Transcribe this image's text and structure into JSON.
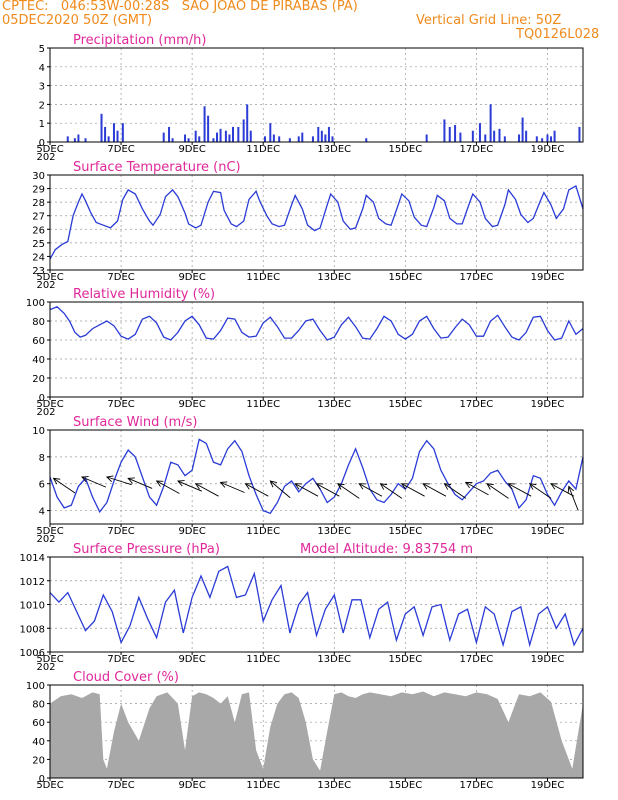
{
  "header": {
    "line1": "CPTEC:   046:53W-00:28S   SAO JOAO DE PIRABAS (PA)",
    "date": "05DEC2020 50Z (GMT)",
    "grid_note": "Vertical Grid Line: 50Z",
    "code": "TQ0126L028"
  },
  "colors": {
    "header": "#f08a1c",
    "title": "#e0289a",
    "line": "#2a3bd6",
    "cloud": "#a8a8a8"
  },
  "chart_data": [
    {
      "type": "bar",
      "title": "Precipitation (mm/h)",
      "ylim": [
        0,
        5
      ],
      "yticks": [
        0,
        1,
        2,
        3,
        4,
        5
      ],
      "x_ticks": [
        "5DEC",
        "7DEC",
        "9DEC",
        "11DEC",
        "13DEC",
        "15DEC",
        "17DEC",
        "19DEC"
      ],
      "x_tick_days": [
        0,
        2,
        4,
        6,
        8,
        10,
        12,
        14
      ],
      "x_range_days": [
        0,
        15
      ],
      "x_sub": "202",
      "bars": [
        [
          0.5,
          0.3
        ],
        [
          0.7,
          0.2
        ],
        [
          0.8,
          0.4
        ],
        [
          1.0,
          0.2
        ],
        [
          1.45,
          1.5
        ],
        [
          1.55,
          0.8
        ],
        [
          1.65,
          0.3
        ],
        [
          1.8,
          1.0
        ],
        [
          1.9,
          0.6
        ],
        [
          2.05,
          1.0
        ],
        [
          3.2,
          0.5
        ],
        [
          3.35,
          0.8
        ],
        [
          3.45,
          0.2
        ],
        [
          3.8,
          0.4
        ],
        [
          3.9,
          0.2
        ],
        [
          4.1,
          0.6
        ],
        [
          4.2,
          0.3
        ],
        [
          4.35,
          1.9
        ],
        [
          4.45,
          1.4
        ],
        [
          4.6,
          0.2
        ],
        [
          4.7,
          0.5
        ],
        [
          4.8,
          0.7
        ],
        [
          4.95,
          0.6
        ],
        [
          5.05,
          0.4
        ],
        [
          5.15,
          0.8
        ],
        [
          5.3,
          0.8
        ],
        [
          5.45,
          1.2
        ],
        [
          5.55,
          2.0
        ],
        [
          5.65,
          0.6
        ],
        [
          6.05,
          0.3
        ],
        [
          6.2,
          1.0
        ],
        [
          6.3,
          0.4
        ],
        [
          6.45,
          0.3
        ],
        [
          6.75,
          0.2
        ],
        [
          7.0,
          0.3
        ],
        [
          7.1,
          0.5
        ],
        [
          7.4,
          0.3
        ],
        [
          7.55,
          0.8
        ],
        [
          7.65,
          0.6
        ],
        [
          7.75,
          0.4
        ],
        [
          7.85,
          0.8
        ],
        [
          7.95,
          0.3
        ],
        [
          8.9,
          0.2
        ],
        [
          10.6,
          0.4
        ],
        [
          11.1,
          1.2
        ],
        [
          11.25,
          0.8
        ],
        [
          11.4,
          0.9
        ],
        [
          11.55,
          0.5
        ],
        [
          11.9,
          0.6
        ],
        [
          12.1,
          1.0
        ],
        [
          12.25,
          0.4
        ],
        [
          12.4,
          2.0
        ],
        [
          12.5,
          0.6
        ],
        [
          12.65,
          0.7
        ],
        [
          12.8,
          0.3
        ],
        [
          13.2,
          0.4
        ],
        [
          13.3,
          1.3
        ],
        [
          13.4,
          0.6
        ],
        [
          13.7,
          0.3
        ],
        [
          13.85,
          0.2
        ],
        [
          14.0,
          0.4
        ],
        [
          14.1,
          0.3
        ],
        [
          14.2,
          0.6
        ],
        [
          14.9,
          0.8
        ]
      ]
    },
    {
      "type": "line",
      "title": "Surface Temperature (nC)",
      "ylim": [
        23,
        30
      ],
      "yticks": [
        23,
        24,
        25,
        26,
        27,
        28,
        29,
        30
      ],
      "x_ticks": [
        "5DEC",
        "7DEC",
        "9DEC",
        "11DEC",
        "13DEC",
        "15DEC",
        "17DEC",
        "19DEC"
      ],
      "x_tick_days": [
        0,
        2,
        4,
        6,
        8,
        10,
        12,
        14
      ],
      "x_range_days": [
        0,
        15
      ],
      "x_sub": "202",
      "x": [
        0,
        0.15,
        0.35,
        0.5,
        0.65,
        0.8,
        0.9,
        1.0,
        1.15,
        1.3,
        1.5,
        1.7,
        1.9,
        2.05,
        2.2,
        2.4,
        2.6,
        2.8,
        2.9,
        3.1,
        3.25,
        3.45,
        3.6,
        3.8,
        3.9,
        4.1,
        4.25,
        4.45,
        4.6,
        4.8,
        4.9,
        5.1,
        5.25,
        5.45,
        5.6,
        5.8,
        5.9,
        6.1,
        6.25,
        6.45,
        6.6,
        6.8,
        6.9,
        7.1,
        7.25,
        7.45,
        7.6,
        7.8,
        7.9,
        8.1,
        8.25,
        8.45,
        8.6,
        8.8,
        8.9,
        9.1,
        9.25,
        9.45,
        9.6,
        9.8,
        9.9,
        10.1,
        10.25,
        10.45,
        10.6,
        10.8,
        10.9,
        11.1,
        11.25,
        11.45,
        11.6,
        11.8,
        11.9,
        12.1,
        12.25,
        12.45,
        12.6,
        12.8,
        12.9,
        13.1,
        13.25,
        13.45,
        13.6,
        13.8,
        13.9,
        14.1,
        14.25,
        14.45,
        14.6,
        14.8,
        15.0
      ],
      "y": [
        23.8,
        24.5,
        24.9,
        25.1,
        27.0,
        28.0,
        28.6,
        28.1,
        27.2,
        26.5,
        26.3,
        26.1,
        26.6,
        28.2,
        28.9,
        28.6,
        27.5,
        26.6,
        26.3,
        27.1,
        28.4,
        28.9,
        28.4,
        27.2,
        26.4,
        26.1,
        26.3,
        28.0,
        28.8,
        28.7,
        27.4,
        26.4,
        26.2,
        26.6,
        28.2,
        28.8,
        28.1,
        27.0,
        26.4,
        26.2,
        26.3,
        27.8,
        28.5,
        27.5,
        26.3,
        25.9,
        26.1,
        27.8,
        28.6,
        28.0,
        26.6,
        26.0,
        26.1,
        27.5,
        28.5,
        28.0,
        26.8,
        26.4,
        26.3,
        27.8,
        28.6,
        28.1,
        26.9,
        26.3,
        26.2,
        27.6,
        28.5,
        28.1,
        26.8,
        26.4,
        26.4,
        27.9,
        28.6,
        28.0,
        26.8,
        26.2,
        26.3,
        27.8,
        28.9,
        28.2,
        27.1,
        26.5,
        26.8,
        28.1,
        28.7,
        27.8,
        26.8,
        27.5,
        28.9,
        29.2,
        27.5
      ]
    },
    {
      "type": "line",
      "title": "Relative Humidity (%)",
      "ylim": [
        0,
        100
      ],
      "yticks": [
        0,
        20,
        40,
        60,
        80,
        100
      ],
      "x_ticks": [
        "5DEC",
        "7DEC",
        "9DEC",
        "11DEC",
        "13DEC",
        "15DEC",
        "17DEC",
        "19DEC"
      ],
      "x_tick_days": [
        0,
        2,
        4,
        6,
        8,
        10,
        12,
        14
      ],
      "x_range_days": [
        0,
        15
      ],
      "x_sub": "202",
      "x": [
        0,
        0.2,
        0.4,
        0.55,
        0.7,
        0.85,
        1.0,
        1.2,
        1.4,
        1.6,
        1.8,
        2.0,
        2.2,
        2.4,
        2.6,
        2.8,
        3.0,
        3.2,
        3.4,
        3.6,
        3.8,
        4.0,
        4.2,
        4.4,
        4.6,
        4.8,
        5.0,
        5.2,
        5.4,
        5.6,
        5.8,
        6.0,
        6.2,
        6.4,
        6.6,
        6.8,
        7.0,
        7.2,
        7.4,
        7.6,
        7.8,
        8.0,
        8.2,
        8.4,
        8.6,
        8.8,
        9.0,
        9.2,
        9.4,
        9.6,
        9.8,
        10.0,
        10.2,
        10.4,
        10.6,
        10.8,
        11.0,
        11.2,
        11.4,
        11.6,
        11.8,
        12.0,
        12.2,
        12.4,
        12.6,
        12.8,
        13.0,
        13.2,
        13.4,
        13.6,
        13.8,
        14.0,
        14.2,
        14.4,
        14.6,
        14.8,
        15.0
      ],
      "y": [
        92,
        95,
        88,
        80,
        68,
        63,
        65,
        72,
        76,
        80,
        75,
        64,
        61,
        66,
        82,
        85,
        78,
        63,
        60,
        68,
        80,
        85,
        76,
        62,
        61,
        70,
        83,
        82,
        68,
        63,
        64,
        78,
        84,
        74,
        62,
        62,
        70,
        80,
        82,
        70,
        60,
        63,
        76,
        84,
        74,
        62,
        61,
        72,
        85,
        80,
        66,
        61,
        66,
        80,
        85,
        72,
        62,
        63,
        73,
        82,
        76,
        64,
        64,
        80,
        86,
        74,
        63,
        60,
        68,
        84,
        85,
        70,
        60,
        62,
        80,
        66,
        72
      ]
    },
    {
      "type": "line",
      "title": "Surface Wind (m/s)",
      "ylim": [
        3,
        10
      ],
      "yticks": [
        4,
        6,
        8,
        10
      ],
      "x_ticks": [
        "5DEC",
        "7DEC",
        "9DEC",
        "11DEC",
        "13DEC",
        "15DEC",
        "17DEC",
        "19DEC"
      ],
      "x_tick_days": [
        0,
        2,
        4,
        6,
        8,
        10,
        12,
        14
      ],
      "x_range_days": [
        0,
        15
      ],
      "x_sub": "202",
      "x": [
        0,
        0.2,
        0.4,
        0.6,
        0.8,
        1.0,
        1.2,
        1.4,
        1.6,
        1.8,
        2.0,
        2.2,
        2.4,
        2.6,
        2.8,
        3.0,
        3.2,
        3.4,
        3.6,
        3.8,
        4.0,
        4.2,
        4.4,
        4.6,
        4.8,
        5.0,
        5.2,
        5.4,
        5.6,
        5.8,
        6.0,
        6.2,
        6.4,
        6.6,
        6.8,
        7.0,
        7.2,
        7.4,
        7.6,
        7.8,
        8.0,
        8.2,
        8.4,
        8.6,
        8.8,
        9.0,
        9.2,
        9.4,
        9.6,
        9.8,
        10.0,
        10.2,
        10.4,
        10.6,
        10.8,
        11.0,
        11.2,
        11.4,
        11.6,
        11.8,
        12.0,
        12.2,
        12.4,
        12.6,
        12.8,
        13.0,
        13.2,
        13.4,
        13.6,
        13.8,
        14.0,
        14.2,
        14.4,
        14.6,
        14.8,
        15.0
      ],
      "y": [
        6.5,
        5.0,
        4.2,
        4.4,
        5.8,
        6.4,
        5.0,
        3.9,
        4.6,
        6.2,
        7.6,
        8.5,
        8.0,
        6.5,
        5.0,
        4.4,
        5.8,
        7.6,
        7.4,
        6.6,
        7.0,
        9.3,
        9.0,
        7.6,
        7.4,
        8.6,
        9.2,
        8.4,
        6.6,
        5.2,
        4.0,
        3.8,
        4.6,
        5.8,
        6.2,
        5.4,
        6.0,
        6.4,
        5.6,
        4.6,
        5.0,
        6.0,
        7.4,
        8.6,
        7.2,
        5.6,
        4.8,
        4.6,
        5.2,
        6.0,
        5.6,
        6.4,
        8.4,
        9.2,
        8.6,
        7.0,
        6.0,
        5.2,
        4.8,
        5.4,
        6.0,
        6.2,
        6.8,
        7.0,
        6.2,
        5.6,
        4.2,
        4.8,
        6.6,
        6.4,
        5.2,
        4.4,
        5.4,
        6.2,
        5.6,
        8.0
      ],
      "arrows": [
        [
          0.1,
          6.4,
          -0.6
        ],
        [
          0.9,
          6.5,
          -0.4
        ],
        [
          1.6,
          6.5,
          -0.3
        ],
        [
          2.2,
          6.4,
          -0.4
        ],
        [
          3.0,
          6.2,
          -0.5
        ],
        [
          3.6,
          6.2,
          -0.4
        ],
        [
          4.1,
          6.0,
          -0.5
        ],
        [
          4.8,
          6.1,
          -0.4
        ],
        [
          5.5,
          6.0,
          -0.5
        ],
        [
          6.2,
          6.2,
          -0.7
        ],
        [
          6.9,
          6.0,
          -0.5
        ],
        [
          7.5,
          6.0,
          -0.5
        ],
        [
          8.1,
          6.0,
          -0.6
        ],
        [
          8.7,
          6.0,
          -0.5
        ],
        [
          9.3,
          6.0,
          -0.6
        ],
        [
          9.9,
          6.0,
          -0.5
        ],
        [
          10.5,
          6.0,
          -0.5
        ],
        [
          11.1,
          6.0,
          -0.6
        ],
        [
          11.7,
          6.1,
          -0.5
        ],
        [
          12.3,
          6.0,
          -0.6
        ],
        [
          12.9,
          6.0,
          -0.5
        ],
        [
          13.5,
          6.0,
          -0.6
        ],
        [
          14.1,
          6.0,
          -0.5
        ],
        [
          14.6,
          5.8,
          -1.2
        ]
      ]
    },
    {
      "type": "line",
      "title": "Surface Pressure (hPa)",
      "annotation": "Model Altitude: 9.83754 m",
      "ylim": [
        1006,
        1014
      ],
      "yticks": [
        1006,
        1008,
        1010,
        1012,
        1014
      ],
      "x_ticks": [
        "5DEC",
        "7DEC",
        "9DEC",
        "11DEC",
        "13DEC",
        "15DEC",
        "17DEC",
        "19DEC"
      ],
      "x_tick_days": [
        0,
        2,
        4,
        6,
        8,
        10,
        12,
        14
      ],
      "x_range_days": [
        0,
        15
      ],
      "x_sub": "202",
      "x": [
        0,
        0.25,
        0.5,
        0.75,
        1.0,
        1.25,
        1.5,
        1.75,
        2.0,
        2.25,
        2.5,
        2.75,
        3.0,
        3.25,
        3.5,
        3.75,
        4.0,
        4.25,
        4.5,
        4.75,
        5.0,
        5.25,
        5.5,
        5.75,
        6.0,
        6.25,
        6.5,
        6.75,
        7.0,
        7.25,
        7.5,
        7.75,
        8.0,
        8.25,
        8.5,
        8.75,
        9.0,
        9.25,
        9.5,
        9.75,
        10.0,
        10.25,
        10.5,
        10.75,
        11.0,
        11.25,
        11.5,
        11.75,
        12.0,
        12.25,
        12.5,
        12.75,
        13.0,
        13.25,
        13.5,
        13.75,
        14.0,
        14.25,
        14.5,
        14.75,
        15.0
      ],
      "y": [
        1011.0,
        1010.2,
        1011.0,
        1009.4,
        1007.8,
        1008.6,
        1010.8,
        1009.4,
        1006.8,
        1008.2,
        1010.6,
        1008.8,
        1007.2,
        1010.2,
        1011.2,
        1007.6,
        1010.6,
        1012.4,
        1010.6,
        1012.8,
        1013.2,
        1010.6,
        1010.8,
        1012.6,
        1008.6,
        1010.4,
        1011.6,
        1007.6,
        1010.0,
        1011.0,
        1007.4,
        1009.6,
        1010.8,
        1007.6,
        1010.4,
        1010.4,
        1007.2,
        1009.6,
        1010.2,
        1007.0,
        1009.2,
        1009.8,
        1007.4,
        1009.8,
        1010.0,
        1007.0,
        1009.2,
        1009.6,
        1006.8,
        1009.8,
        1009.2,
        1006.6,
        1009.4,
        1009.8,
        1006.6,
        1009.2,
        1009.8,
        1008.0,
        1009.2,
        1006.6,
        1008.0
      ]
    },
    {
      "type": "area",
      "title": "Cloud Cover (%)",
      "ylim": [
        0,
        100
      ],
      "yticks": [
        0,
        20,
        40,
        60,
        80,
        100
      ],
      "x_ticks": [
        "5DEC",
        "7DEC",
        "9DEC",
        "11DEC",
        "13DEC",
        "15DEC",
        "17DEC",
        "19DEC"
      ],
      "x_tick_days": [
        0,
        2,
        4,
        6,
        8,
        10,
        12,
        14
      ],
      "x_range_days": [
        0,
        15
      ],
      "x": [
        0,
        0.3,
        0.6,
        0.9,
        1.2,
        1.4,
        1.5,
        1.6,
        1.8,
        2.0,
        2.2,
        2.5,
        2.8,
        3.0,
        3.3,
        3.6,
        3.8,
        4.0,
        4.2,
        4.4,
        4.6,
        4.8,
        5.0,
        5.2,
        5.4,
        5.6,
        5.8,
        6.0,
        6.2,
        6.4,
        6.6,
        6.8,
        7.0,
        7.2,
        7.4,
        7.6,
        7.8,
        8.0,
        8.2,
        8.4,
        8.6,
        8.8,
        9.0,
        9.3,
        9.6,
        9.9,
        10.2,
        10.5,
        10.8,
        11.1,
        11.4,
        11.7,
        12.0,
        12.3,
        12.6,
        12.9,
        13.2,
        13.5,
        13.8,
        14.1,
        14.4,
        14.7,
        15.0
      ],
      "y": [
        80,
        88,
        90,
        86,
        92,
        90,
        20,
        10,
        50,
        80,
        60,
        40,
        75,
        88,
        92,
        80,
        30,
        88,
        92,
        90,
        86,
        80,
        88,
        60,
        90,
        92,
        30,
        10,
        55,
        80,
        90,
        92,
        86,
        60,
        20,
        8,
        50,
        90,
        92,
        88,
        86,
        90,
        92,
        90,
        88,
        92,
        90,
        93,
        88,
        92,
        90,
        88,
        92,
        90,
        85,
        60,
        90,
        88,
        92,
        82,
        40,
        10,
        80
      ]
    }
  ]
}
